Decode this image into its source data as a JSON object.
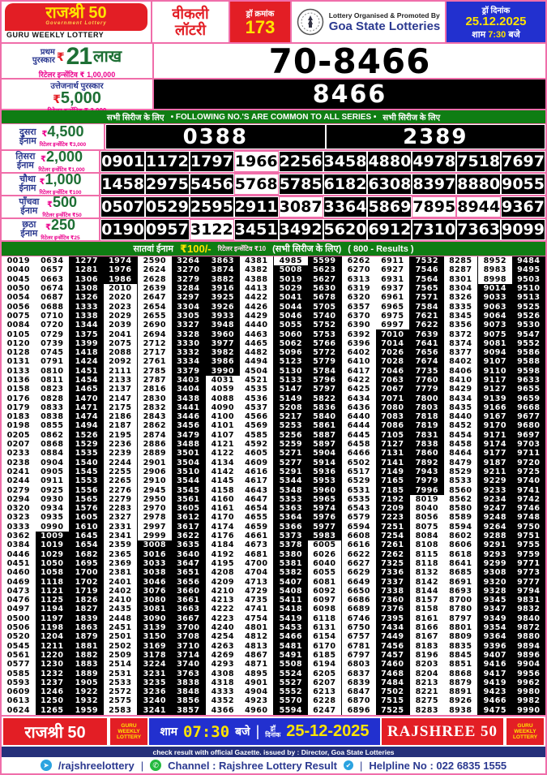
{
  "header": {
    "brand_title": "राजश्री 50",
    "brand_subtitle": "Government Lottery",
    "brand_tagline": "GURU WEEKLY LOTTERY",
    "weekly_line1": "वीकली",
    "weekly_line2": "लॉटरी",
    "draw_no_label": "ड्रॉ क्रमांक",
    "draw_no": "173",
    "org_line1": "Lottery Organised & Promoted By",
    "org_line2": "Goa State Lotteries",
    "date_label": "ड्रॉ दिनांक",
    "date": "25.12.2025",
    "time_prefix": "शाम",
    "time": "7:30",
    "time_suffix": "बजे"
  },
  "first_prize": {
    "label_line1": "प्रथम",
    "label_line2": "पुरस्कार",
    "currency": "₹",
    "amount": "21",
    "amount_unit": "लाख",
    "incentive": "रिटेलर इन्सेंटिव ₹ 1,00,000",
    "number": "70-8466"
  },
  "consolation": {
    "label": "उत्तेजनार्थ पुरस्कार",
    "currency": "₹",
    "amount": "5,000",
    "incentive": "रिटेलर इन्सेंटिव ₹ 3,000",
    "number": "8466"
  },
  "common_bar": {
    "left": "सभी सिरीज के लिए",
    "center": "• FOLLOWING NO.'S ARE COMMON TO ALL SERIES •",
    "right": "सभी सिरीज के लिए"
  },
  "prizes": [
    {
      "label": "दुसरा ईनाम",
      "amount": "4,500",
      "incentive": "रिटेलर इन्सेंटिव ₹3,000",
      "big": true,
      "highlight": [],
      "numbers": [
        "0388",
        "2389"
      ]
    },
    {
      "label": "तिसरा ईनाम",
      "amount": "2,000",
      "incentive": "रिटेलर इन्सेंटिव ₹1,000",
      "big": false,
      "highlight": [
        3
      ],
      "numbers": [
        "0901",
        "1172",
        "1797",
        "1966",
        "2256",
        "3458",
        "4880",
        "4978",
        "7518",
        "7697"
      ]
    },
    {
      "label": "चौथा ईनाम",
      "amount": "1,000",
      "incentive": "रिटेलर इन्सेंटिव ₹100",
      "big": false,
      "highlight": [
        3
      ],
      "numbers": [
        "1458",
        "2975",
        "5456",
        "5768",
        "5785",
        "6182",
        "6308",
        "8397",
        "8880",
        "9055"
      ]
    },
    {
      "label": "पाँचवा ईनाम",
      "amount": "500",
      "incentive": "रिटेलर इन्सेंटिव ₹50",
      "big": false,
      "highlight": [
        4,
        7,
        8
      ],
      "numbers": [
        "0507",
        "0529",
        "2595",
        "2911",
        "3087",
        "3364",
        "5869",
        "7895",
        "8944",
        "9367"
      ]
    },
    {
      "label": "छठा ईनाम",
      "amount": "250",
      "incentive": "रिटेलर इन्सेंटिव ₹25",
      "big": false,
      "highlight": [
        2
      ],
      "numbers": [
        "0190",
        "0957",
        "3122",
        "3451",
        "3492",
        "5620",
        "6912",
        "7310",
        "7363",
        "9099"
      ]
    }
  ],
  "seventh_bar": {
    "label": "सातवां ईनाम",
    "amount": "₹100/-",
    "incentive": "रिटेलर इन्सेंटिव ₹10",
    "series": "(सभी सिरीज के लिए)",
    "results": "( 800 - Results )"
  },
  "results_columns": [
    [
      "0019",
      "0040",
      "0045",
      "0050",
      "0054",
      "0056",
      "0075",
      "0084",
      "0105",
      "0120",
      "0128",
      "0131",
      "0133",
      "0136",
      "0158",
      "0176",
      "0179",
      "0183",
      "0198",
      "0205",
      "0207",
      "0233",
      "0238",
      "0241",
      "0244",
      "0279",
      "0294",
      "0320",
      "0323",
      "0333",
      "0362",
      "0384",
      "0446",
      "0451",
      "0460",
      "0469",
      "0473",
      "0476",
      "0497",
      "0500",
      "0506",
      "0520",
      "0545",
      "0561",
      "0577",
      "0585",
      "0593",
      "0609",
      "0613",
      "0624"
    ],
    [
      "0634",
      "0657",
      "0663",
      "0674",
      "0687",
      "0688",
      "0710",
      "0720",
      "0729",
      "0739",
      "0745",
      "0791",
      "0810",
      "0811",
      "0823",
      "0828",
      "0833",
      "0838",
      "0855",
      "0862",
      "0868",
      "0884",
      "0904",
      "0905",
      "0911",
      "0925",
      "0930",
      "0934",
      "0935",
      "0990",
      "1009",
      "1019",
      "1029",
      "1050",
      "1058",
      "1118",
      "1121",
      "1125",
      "1194",
      "1197",
      "1198",
      "1204",
      "1211",
      "1220",
      "1230",
      "1232",
      "1237",
      "1246",
      "1250",
      "1265"
    ],
    [
      "1277",
      "1281",
      "1306",
      "1308",
      "1326",
      "1333",
      "1338",
      "1344",
      "1375",
      "1399",
      "1418",
      "1424",
      "1451",
      "1454",
      "1465",
      "1470",
      "1471",
      "1474",
      "1494",
      "1526",
      "1529",
      "1535",
      "1540",
      "1545",
      "1553",
      "1556",
      "1565",
      "1576",
      "1605",
      "1610",
      "1645",
      "1654",
      "1682",
      "1695",
      "1700",
      "1702",
      "1719",
      "1826",
      "1827",
      "1839",
      "1863",
      "1879",
      "1881",
      "1882",
      "1883",
      "1889",
      "1905",
      "1922",
      "1932",
      "1959"
    ],
    [
      "1974",
      "1976",
      "1986",
      "2010",
      "2020",
      "2023",
      "2029",
      "2039",
      "2041",
      "2075",
      "2088",
      "2092",
      "2111",
      "2133",
      "2137",
      "2147",
      "2175",
      "2186",
      "2187",
      "2195",
      "2236",
      "2239",
      "2244",
      "2255",
      "2265",
      "2276",
      "2279",
      "2283",
      "2327",
      "2331",
      "2341",
      "2359",
      "2365",
      "2369",
      "2381",
      "2401",
      "2402",
      "2410",
      "2435",
      "2448",
      "2451",
      "2501",
      "2502",
      "2509",
      "2514",
      "2531",
      "2533",
      "2572",
      "2575",
      "2583"
    ],
    [
      "2590",
      "2624",
      "2628",
      "2639",
      "2647",
      "2654",
      "2655",
      "2690",
      "2694",
      "2712",
      "2717",
      "2761",
      "2785",
      "2787",
      "2816",
      "2830",
      "2832",
      "2843",
      "2862",
      "2874",
      "2886",
      "2889",
      "2901",
      "2906",
      "2910",
      "2945",
      "2950",
      "2970",
      "2978",
      "2997",
      "2999",
      "3008",
      "3016",
      "3033",
      "3038",
      "3046",
      "3076",
      "3080",
      "3081",
      "3090",
      "3139",
      "3150",
      "3169",
      "3178",
      "3224",
      "3231",
      "3235",
      "3236",
      "3240",
      "3241"
    ],
    [
      "3264",
      "3270",
      "3279",
      "3284",
      "3297",
      "3304",
      "3305",
      "3327",
      "3328",
      "3330",
      "3332",
      "3334",
      "3379",
      "3403",
      "3404",
      "3438",
      "3441",
      "3446",
      "3456",
      "3479",
      "3488",
      "3501",
      "3504",
      "3510",
      "3544",
      "3545",
      "3561",
      "3605",
      "3612",
      "3617",
      "3622",
      "3635",
      "3640",
      "3647",
      "3651",
      "3656",
      "3660",
      "3661",
      "3663",
      "3667",
      "3700",
      "3708",
      "3710",
      "3714",
      "3740",
      "3763",
      "3838",
      "3848",
      "3856",
      "3857"
    ],
    [
      "3863",
      "3874",
      "3882",
      "3916",
      "3925",
      "3926",
      "3933",
      "3948",
      "3960",
      "3977",
      "3982",
      "3986",
      "3990",
      "4031",
      "4059",
      "4088",
      "4090",
      "4100",
      "4101",
      "4107",
      "4121",
      "4122",
      "4134",
      "4142",
      "4145",
      "4158",
      "4160",
      "4161",
      "4170",
      "4174",
      "4176",
      "4184",
      "4192",
      "4195",
      "4208",
      "4209",
      "4210",
      "4213",
      "4222",
      "4223",
      "4240",
      "4254",
      "4263",
      "4269",
      "4293",
      "4308",
      "4318",
      "4333",
      "4352",
      "4366"
    ],
    [
      "4381",
      "4382",
      "4388",
      "4413",
      "4422",
      "4426",
      "4429",
      "4440",
      "4463",
      "4465",
      "4482",
      "4494",
      "4504",
      "4521",
      "4535",
      "4536",
      "4537",
      "4566",
      "4569",
      "4585",
      "4592",
      "4605",
      "4609",
      "4616",
      "4617",
      "4643",
      "4647",
      "4654",
      "4655",
      "4659",
      "4661",
      "4673",
      "4681",
      "4700",
      "4704",
      "4713",
      "4729",
      "4735",
      "4741",
      "4754",
      "4801",
      "4812",
      "4813",
      "4867",
      "4871",
      "4895",
      "4901",
      "4904",
      "4923",
      "4960"
    ],
    [
      "4985",
      "5008",
      "5019",
      "5029",
      "5041",
      "5044",
      "5046",
      "5055",
      "5060",
      "5062",
      "5096",
      "5123",
      "5130",
      "5133",
      "5147",
      "5149",
      "5208",
      "5217",
      "5253",
      "5256",
      "5259",
      "5271",
      "5277",
      "5291",
      "5344",
      "5348",
      "5353",
      "5363",
      "5364",
      "5366",
      "5373",
      "5378",
      "5380",
      "5381",
      "5382",
      "5407",
      "5408",
      "5411",
      "5418",
      "5419",
      "5453",
      "5466",
      "5481",
      "5491",
      "5508",
      "5524",
      "5527",
      "5552",
      "5570",
      "5594"
    ],
    [
      "5599",
      "5623",
      "5627",
      "5630",
      "5678",
      "5705",
      "5740",
      "5752",
      "5753",
      "5766",
      "5772",
      "5779",
      "5784",
      "5796",
      "5797",
      "5822",
      "5836",
      "5840",
      "5861",
      "5887",
      "5897",
      "5904",
      "5914",
      "5936",
      "5953",
      "5960",
      "5965",
      "5974",
      "5976",
      "5977",
      "5983",
      "6005",
      "6026",
      "6040",
      "6055",
      "6081",
      "6092",
      "6097",
      "6098",
      "6118",
      "6131",
      "6154",
      "6170",
      "6185",
      "6194",
      "6205",
      "6207",
      "6213",
      "6228",
      "6247"
    ],
    [
      "6262",
      "6270",
      "6313",
      "6319",
      "6320",
      "6357",
      "6370",
      "6390",
      "6392",
      "6396",
      "6402",
      "6410",
      "6417",
      "6422",
      "6425",
      "6434",
      "6436",
      "6440",
      "6444",
      "6445",
      "6458",
      "6466",
      "6502",
      "6517",
      "6529",
      "6531",
      "6535",
      "6543",
      "6579",
      "6594",
      "6608",
      "6616",
      "6622",
      "6627",
      "6629",
      "6649",
      "6650",
      "6686",
      "6689",
      "6746",
      "6750",
      "6757",
      "6781",
      "6797",
      "6803",
      "6837",
      "6839",
      "6847",
      "6870",
      "6896"
    ],
    [
      "6911",
      "6927",
      "6931",
      "6937",
      "6961",
      "6965",
      "6975",
      "6997",
      "7010",
      "7014",
      "7026",
      "7028",
      "7046",
      "7063",
      "7067",
      "7071",
      "7080",
      "7083",
      "7086",
      "7105",
      "7127",
      "7131",
      "7141",
      "7149",
      "7165",
      "7185",
      "7192",
      "7209",
      "7223",
      "7251",
      "7254",
      "7261",
      "7262",
      "7325",
      "7336",
      "7337",
      "7338",
      "7360",
      "7376",
      "7395",
      "7434",
      "7449",
      "7456",
      "7457",
      "7460",
      "7468",
      "7484",
      "7502",
      "7515",
      "7525"
    ],
    [
      "7532",
      "7546",
      "7564",
      "7565",
      "7571",
      "7584",
      "7621",
      "7622",
      "7639",
      "7641",
      "7656",
      "7674",
      "7735",
      "7760",
      "7779",
      "7800",
      "7803",
      "7818",
      "7819",
      "7831",
      "7838",
      "7860",
      "7892",
      "7943",
      "7979",
      "7996",
      "8019",
      "8040",
      "8056",
      "8075",
      "8084",
      "8108",
      "8115",
      "8118",
      "8132",
      "8142",
      "8144",
      "8157",
      "8158",
      "8161",
      "8166",
      "8167",
      "8183",
      "8196",
      "8203",
      "8204",
      "8213",
      "8221",
      "8275",
      "8283"
    ],
    [
      "8285",
      "8287",
      "8301",
      "8304",
      "8326",
      "8335",
      "8345",
      "8356",
      "8372",
      "8374",
      "8377",
      "8402",
      "8406",
      "8410",
      "8429",
      "8434",
      "8435",
      "8440",
      "8452",
      "8454",
      "8458",
      "8464",
      "8479",
      "8529",
      "8533",
      "8560",
      "8562",
      "8580",
      "8589",
      "8594",
      "8602",
      "8606",
      "8618",
      "8641",
      "8685",
      "8691",
      "8693",
      "8700",
      "8780",
      "8797",
      "8801",
      "8809",
      "8835",
      "8845",
      "8851",
      "8868",
      "8879",
      "8891",
      "8926",
      "8938"
    ],
    [
      "8952",
      "8983",
      "8998",
      "9014",
      "9033",
      "9063",
      "9064",
      "9073",
      "9075",
      "9081",
      "9094",
      "9107",
      "9110",
      "9117",
      "9127",
      "9139",
      "9166",
      "9167",
      "9170",
      "9171",
      "9174",
      "9177",
      "9187",
      "9211",
      "9229",
      "9233",
      "9234",
      "9247",
      "9248",
      "9264",
      "9288",
      "9291",
      "9293",
      "9299",
      "9308",
      "9320",
      "9328",
      "9345",
      "9347",
      "9349",
      "9354",
      "9364",
      "9396",
      "9407",
      "9416",
      "9417",
      "9419",
      "9423",
      "9466",
      "9475"
    ],
    [
      "9484",
      "9495",
      "9503",
      "9510",
      "9513",
      "9525",
      "9526",
      "9530",
      "9547",
      "9552",
      "9586",
      "9588",
      "9598",
      "9633",
      "9655",
      "9659",
      "9668",
      "9677",
      "9680",
      "9697",
      "9703",
      "9711",
      "9720",
      "9725",
      "9740",
      "9741",
      "9742",
      "9746",
      "9748",
      "9750",
      "9751",
      "9755",
      "9759",
      "9771",
      "9773",
      "9777",
      "9794",
      "9831",
      "9832",
      "9840",
      "9872",
      "9880",
      "9894",
      "9896",
      "9904",
      "9956",
      "9962",
      "9980",
      "9982",
      "9990"
    ]
  ],
  "footer": {
    "brand_left": "राजश्री 50",
    "badge": "GURU WEEKLY LOTTERY",
    "time_prefix": "शाम",
    "time": "07:30",
    "time_suffix": "बजे",
    "date_label_1": "ड्रॉ",
    "date_label_2": "दिनांक",
    "date": "25-12-2025",
    "brand_right": "RAJSHREE 50",
    "gazette": "check result with official Gazette. issued by : Director, Goa State Lotteries",
    "telegram": "/rajshreelottery",
    "channel": "Channel : Rajshree Lottery Result",
    "helpline": "Helpline No : 022 6835 1555"
  },
  "colors": {
    "pink_border": "#f06eaa",
    "red": "#e31e25",
    "blue": "#2230cf",
    "navy": "#25307a",
    "green_bar": "#0f7d13",
    "green_amount": "#1d6f34",
    "magenta_text": "#ec008c",
    "yellow": "#ffe400"
  }
}
